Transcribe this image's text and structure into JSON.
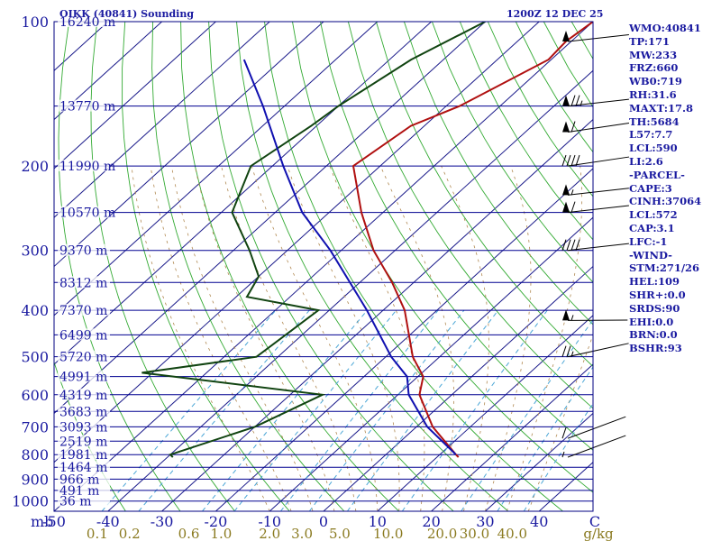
{
  "title_left": "OIKK (40841) Sounding",
  "title_right": "1200Z 12 DEC 25",
  "chart_data": {
    "type": "line",
    "title": "OIKK (40841) Sounding",
    "subtitle": "1200Z 12 DEC 25",
    "chart_kind": "Skew-T log-P diagram",
    "pressure_axis_label": "mb",
    "pressure_ticks": [
      100,
      200,
      300,
      400,
      500,
      600,
      700,
      800,
      900,
      1000
    ],
    "temperature_ticks": [
      -50,
      -40,
      -30,
      -20,
      -10,
      0,
      10,
      20,
      30,
      40
    ],
    "temperature_axis_end_label": "C",
    "mixing_ratio_label": "g/kg",
    "mixing_ratio_ticks": [
      {
        "label": "0.1",
        "t": -42
      },
      {
        "label": "0.2",
        "t": -36
      },
      {
        "label": "0.6",
        "t": -25
      },
      {
        "label": "1.0",
        "t": -19
      },
      {
        "label": "2.0",
        "t": -10
      },
      {
        "label": "3.0",
        "t": -4
      },
      {
        "label": "5.0",
        "t": 3
      },
      {
        "label": "10.0",
        "t": 12
      },
      {
        "label": "20.0",
        "t": 22
      },
      {
        "label": "30.0",
        "t": 28
      },
      {
        "label": "40.0",
        "t": 35
      }
    ],
    "heights": [
      {
        "p": 100,
        "label": "16240 m"
      },
      {
        "p": 150,
        "label": "13770 m"
      },
      {
        "p": 200,
        "label": "11990 m"
      },
      {
        "p": 250,
        "label": "10570 m"
      },
      {
        "p": 300,
        "label": "9370 m"
      },
      {
        "p": 350,
        "label": "8312 m"
      },
      {
        "p": 400,
        "label": "7370 m"
      },
      {
        "p": 450,
        "label": "6499 m"
      },
      {
        "p": 500,
        "label": "5720 m"
      },
      {
        "p": 550,
        "label": "4991 m"
      },
      {
        "p": 600,
        "label": "4319 m"
      },
      {
        "p": 650,
        "label": "3683 m"
      },
      {
        "p": 700,
        "label": "3093 m"
      },
      {
        "p": 750,
        "label": "2519 m"
      },
      {
        "p": 800,
        "label": "1981 m"
      },
      {
        "p": 850,
        "label": "1464 m"
      },
      {
        "p": 900,
        "label": "966 m"
      },
      {
        "p": 950,
        "label": "491 m"
      },
      {
        "p": 1000,
        "label": "36 m"
      }
    ],
    "series": [
      {
        "name": "Temperature",
        "color": "#b01010",
        "points": [
          {
            "p": 100,
            "t": -50.0
          },
          {
            "p": 110,
            "t": -51.0
          },
          {
            "p": 120,
            "t": -50.5
          },
          {
            "p": 150,
            "t": -57.5
          },
          {
            "p": 165,
            "t": -62.5
          },
          {
            "p": 200,
            "t": -65.0
          },
          {
            "p": 250,
            "t": -54.0
          },
          {
            "p": 300,
            "t": -44.0
          },
          {
            "p": 350,
            "t": -34.0
          },
          {
            "p": 400,
            "t": -26.0
          },
          {
            "p": 500,
            "t": -15.0
          },
          {
            "p": 550,
            "t": -9.0
          },
          {
            "p": 600,
            "t": -6.0
          },
          {
            "p": 700,
            "t": 3.0
          },
          {
            "p": 800,
            "t": 13.0
          },
          {
            "p": 810,
            "t": 14.0
          }
        ]
      },
      {
        "name": "Dewpoint",
        "color": "#114411",
        "points": [
          {
            "p": 100,
            "t": -70.0
          },
          {
            "p": 120,
            "t": -76.0
          },
          {
            "p": 150,
            "t": -80.0
          },
          {
            "p": 165,
            "t": -81.0
          },
          {
            "p": 200,
            "t": -84.0
          },
          {
            "p": 250,
            "t": -78.0
          },
          {
            "p": 300,
            "t": -67.0
          },
          {
            "p": 340,
            "t": -60.0
          },
          {
            "p": 375,
            "t": -58.0
          },
          {
            "p": 400,
            "t": -42.0
          },
          {
            "p": 500,
            "t": -44.0
          },
          {
            "p": 540,
            "t": -62.0
          },
          {
            "p": 600,
            "t": -24.0
          },
          {
            "p": 700,
            "t": -30.0
          },
          {
            "p": 800,
            "t": -40.0
          },
          {
            "p": 810,
            "t": -39.0
          }
        ]
      },
      {
        "name": "Parcel path",
        "color": "#1010b0",
        "points": [
          {
            "p": 800,
            "t": 13.0
          },
          {
            "p": 700,
            "t": 2.0
          },
          {
            "p": 600,
            "t": -8.0
          },
          {
            "p": 550,
            "t": -12.0
          },
          {
            "p": 500,
            "t": -19.0
          },
          {
            "p": 400,
            "t": -33.0
          },
          {
            "p": 300,
            "t": -52.0
          },
          {
            "p": 250,
            "t": -65.0
          },
          {
            "p": 200,
            "t": -78.0
          },
          {
            "p": 150,
            "t": -94.0
          },
          {
            "p": 120,
            "t": -107.0
          }
        ]
      }
    ],
    "wind_barbs": [
      {
        "p": 110,
        "dir": 275,
        "spd": 50
      },
      {
        "p": 150,
        "dir": 275,
        "spd": 75
      },
      {
        "p": 170,
        "dir": 270,
        "spd": 60
      },
      {
        "p": 200,
        "dir": 270,
        "spd": 40
      },
      {
        "p": 230,
        "dir": 275,
        "spd": 55
      },
      {
        "p": 250,
        "dir": 275,
        "spd": 60
      },
      {
        "p": 300,
        "dir": 275,
        "spd": 40
      },
      {
        "p": 420,
        "dir": 290,
        "spd": 55
      },
      {
        "p": 500,
        "dir": 260,
        "spd": 25
      },
      {
        "p": 740,
        "dir": 240,
        "spd": 10
      },
      {
        "p": 810,
        "dir": 240,
        "spd": 5
      }
    ]
  },
  "indices": [
    "WMO:40841",
    "TP:171",
    "MW:233",
    "FRZ:660",
    "WB0:719",
    "RH:31.6",
    "MAXT:17.8",
    "TH:5684",
    "L57:7.7",
    "LCL:590",
    "LI:2.6",
    "-PARCEL-",
    "CAPE:3",
    "CINH:37064",
    "LCL:572",
    "CAP:3.1",
    "LFC:-1",
    "-WIND-",
    "STM:271/26",
    "HEL:109",
    "SHR+:0.0",
    "SRDS:90",
    "EHI:0.0",
    "BRN:0.0",
    "BSHR:93"
  ]
}
